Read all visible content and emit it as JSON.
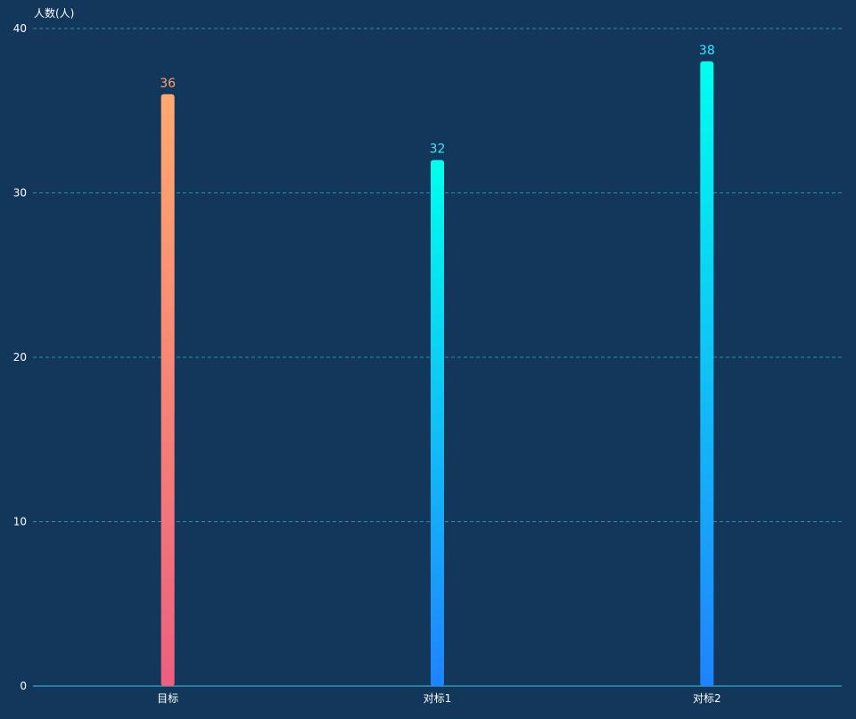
{
  "chart_data": {
    "type": "bar",
    "ylabel": "人数(人)",
    "xlabel": "",
    "categories": [
      "目标",
      "对标1",
      "对标2"
    ],
    "series": [
      {
        "values": [
          36,
          32,
          38
        ]
      }
    ],
    "ylim": [
      0,
      40
    ],
    "yticks": [
      0,
      10,
      20,
      30,
      40
    ],
    "grid": true,
    "legend": "none"
  },
  "colors": {
    "background": "#12375a",
    "grid": "#2f8fa8",
    "axis": "#35c8e0",
    "text": "#ffffff",
    "target_gradient": [
      "#ffa96e",
      "#ee5f7e"
    ],
    "target_label": "#ff9f6b",
    "benchmark_gradient": [
      "#00ffee",
      "#1f83ff"
    ],
    "benchmark_label": "#3be8ff"
  }
}
